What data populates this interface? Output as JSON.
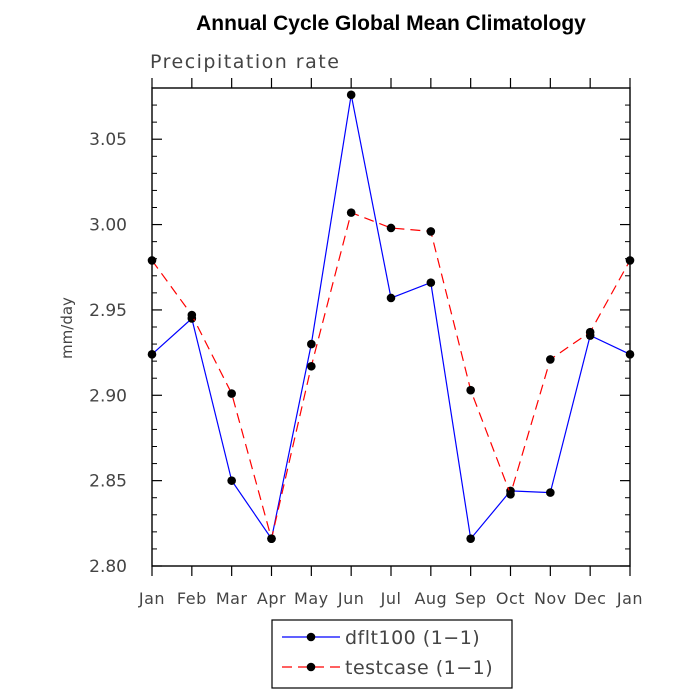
{
  "chart_data": {
    "type": "line",
    "title": "Annual Cycle Global Mean Climatology",
    "subtitle": "Precipitation rate",
    "xlabel": "",
    "ylabel": "mm/day",
    "categories": [
      "Jan",
      "Feb",
      "Mar",
      "Apr",
      "May",
      "Jun",
      "Jul",
      "Aug",
      "Sep",
      "Oct",
      "Nov",
      "Dec",
      "Jan"
    ],
    "ylim": [
      2.8,
      3.08
    ],
    "yticks": [
      "2.80",
      "2.85",
      "2.90",
      "2.95",
      "3.00",
      "3.05"
    ],
    "legend_position": "bottom-center",
    "series": [
      {
        "name": "dflt100 (1−1)",
        "color": "#0000ff",
        "dash": "solid",
        "values": [
          2.924,
          2.945,
          2.85,
          2.816,
          2.93,
          3.076,
          2.957,
          2.966,
          2.816,
          2.844,
          2.843,
          2.935,
          2.924
        ]
      },
      {
        "name": "testcase (1−1)",
        "color": "#ff0000",
        "dash": "dashed",
        "values": [
          2.979,
          2.947,
          2.901,
          2.816,
          2.917,
          3.007,
          2.998,
          2.996,
          2.903,
          2.842,
          2.921,
          2.937,
          2.979
        ]
      }
    ]
  }
}
